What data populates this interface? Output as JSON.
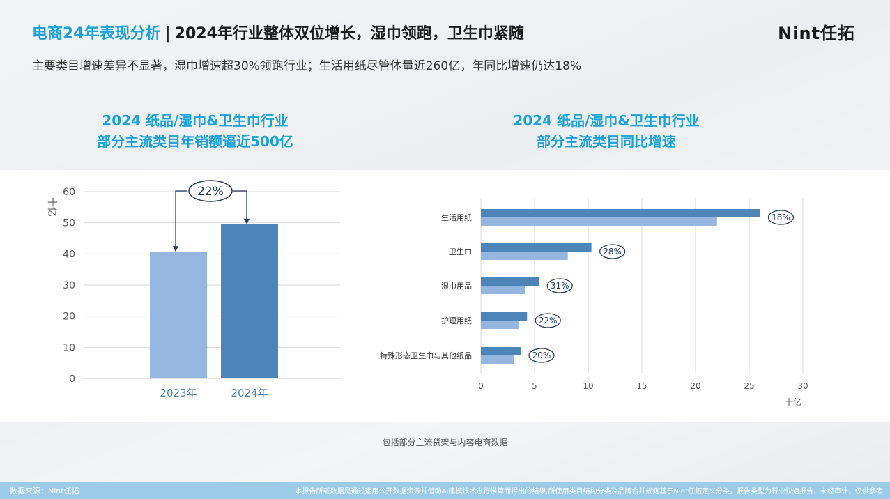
{
  "header": {
    "title_accent": "电商24年表现分析",
    "title_sep": "|",
    "title_rest": "2024年行业整体双位增长，湿巾领跑，卫生巾紧随",
    "logo": "Nint任拓"
  },
  "subtitle": "主要类目增速差异不显著，湿巾增速超30%领跑行业；生活用纸尽管体量近260亿，年同比增速仍达18%",
  "chart_data": [
    {
      "type": "bar",
      "title_line1": "2024 纸品/湿巾&卫生巾行业",
      "title_line2": "部分主流类目年销额逼近500亿",
      "ylabel": "十亿",
      "ylim": [
        0,
        60
      ],
      "yticks": [
        "0",
        "10",
        "20",
        "30",
        "40",
        "50",
        "60"
      ],
      "categories": [
        "2023年",
        "2024年"
      ],
      "values": [
        40.7,
        49.5
      ],
      "colors": [
        "#95b7df",
        "#4e85b9"
      ],
      "growth_annotation": "22%",
      "grid": true
    },
    {
      "type": "bar",
      "orientation": "horizontal",
      "title_line1": "2024 纸品/湿巾&卫生巾行业",
      "title_line2": "部分主流类目同比增速",
      "xlabel": "十亿",
      "xlim": [
        0,
        30
      ],
      "xticks": [
        "0",
        "5",
        "10",
        "15",
        "20",
        "25",
        "30"
      ],
      "categories": [
        "生活用纸",
        "卫生巾",
        "湿巾用品",
        "护理用纸",
        "特殊形态卫生巾与其他纸品"
      ],
      "series": [
        {
          "values": [
            26.0,
            10.3,
            5.4,
            4.3,
            3.7
          ],
          "color": "#4e85b9"
        },
        {
          "values": [
            22.0,
            8.1,
            4.1,
            3.5,
            3.1
          ],
          "color": "#95b7df"
        }
      ],
      "growth_labels": [
        "18%",
        "28%",
        "31%",
        "22%",
        "20%"
      ],
      "grid": true
    }
  ],
  "note": "包括部分主流货架与内容电商数据",
  "footer": {
    "source": "数据来源：Nint任拓",
    "disclaimer": "本报告所载数据是通过运用公开数据资源并借助AI建模技术进行推算而得出的结果,所使用类目结构分类及品牌合并规则基于Nint任拓定义分类。报告类型为行业快速报告，未经审计，仅供参考"
  }
}
